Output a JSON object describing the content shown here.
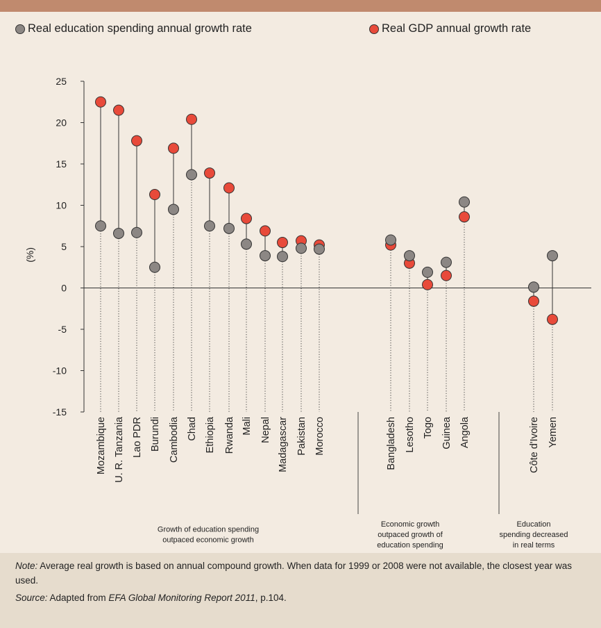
{
  "legend": {
    "education": "Real education spending annual growth rate",
    "gdp": "Real GDP annual growth rate"
  },
  "colors": {
    "education": "#8c8784",
    "gdp": "#e84a3a",
    "header": "#c08a6e",
    "background": "#f3ebe1",
    "note_background": "#e6dccd"
  },
  "chart_data": {
    "type": "scatter",
    "ylabel": "(%)",
    "ylim": [
      -15,
      25
    ],
    "yticks": [
      25,
      20,
      15,
      10,
      5,
      0,
      -5,
      -10,
      -15
    ],
    "categories": [
      "Mozambique",
      "U. R. Tanzania",
      "Lao PDR",
      "Burundi",
      "Cambodia",
      "Chad",
      "Ethiopia",
      "Rwanda",
      "Mali",
      "Nepal",
      "Madagascar",
      "Pakistan",
      "Morocco",
      "Bangladesh",
      "Lesotho",
      "Togo",
      "Guinea",
      "Angola",
      "Côte d'Ivoire",
      "Yemen"
    ],
    "series": [
      {
        "name": "Real education spending annual growth rate",
        "values": [
          7.5,
          6.6,
          6.7,
          2.5,
          9.5,
          13.7,
          7.5,
          7.2,
          5.3,
          3.9,
          3.8,
          4.8,
          4.7,
          5.8,
          3.9,
          1.9,
          3.1,
          10.4,
          0.1,
          3.9
        ]
      },
      {
        "name": "Real GDP annual growth rate",
        "values": [
          22.5,
          21.5,
          17.8,
          11.3,
          16.9,
          20.4,
          13.9,
          12.1,
          8.4,
          6.9,
          5.5,
          5.7,
          5.2,
          5.2,
          3.0,
          0.4,
          1.5,
          8.6,
          -1.6,
          -3.8
        ]
      }
    ],
    "groups": [
      {
        "label": "Growth of education spending outpaced economic growth",
        "lines": [
          "Growth of education spending",
          "outpaced economic growth"
        ]
      },
      {
        "label": "Economic growth outpaced growth of education spending",
        "lines": [
          "Economic growth",
          "outpaced growth of",
          "education spending"
        ]
      },
      {
        "label": "Education spending decreased in real terms",
        "lines": [
          "Education",
          "spending decreased",
          "in real terms"
        ]
      }
    ]
  },
  "notes": {
    "note_label": "Note:",
    "note_text": " Average real growth is based on annual compound growth. When data for 1999 or 2008 were not available, the closest year was used.",
    "source_label": "Source:",
    "source_prefix": " Adapted from ",
    "source_title": "EFA Global Monitoring Report 2011",
    "source_suffix": ", p.104."
  }
}
